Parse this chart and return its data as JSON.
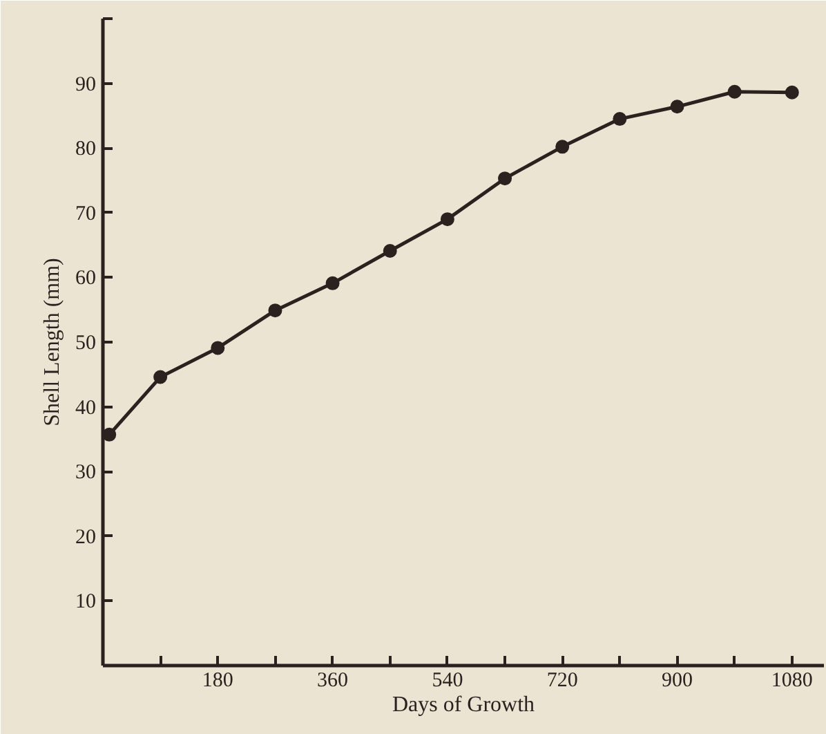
{
  "chart_data": {
    "type": "line",
    "xlabel": "Days of Growth",
    "ylabel": "Shell Length (mm)",
    "x": [
      10,
      90,
      180,
      270,
      360,
      450,
      540,
      630,
      720,
      810,
      900,
      990,
      1080
    ],
    "series": [
      {
        "color": "#2b2220",
        "values": [
          35.7,
          44.6,
          49.1,
          54.9,
          59.1,
          64.1,
          69.0,
          75.3,
          80.2,
          84.5,
          86.4,
          88.7,
          88.6
        ]
      }
    ],
    "xlim": [
      0,
      1130
    ],
    "ylim": [
      0,
      100
    ],
    "xticks": [
      {
        "value": 90,
        "label": null
      },
      180,
      {
        "value": 270,
        "label": null
      },
      360,
      {
        "value": 450,
        "label": null
      },
      540,
      {
        "value": 630,
        "label": null
      },
      720,
      {
        "value": 810,
        "label": null
      },
      900,
      {
        "value": 990,
        "label": null
      },
      1080
    ],
    "yticks": [
      10,
      20,
      30,
      40,
      50,
      60,
      70,
      80,
      90,
      {
        "value": 100,
        "label": null
      }
    ],
    "marker": "circle",
    "line_style": "solid"
  }
}
